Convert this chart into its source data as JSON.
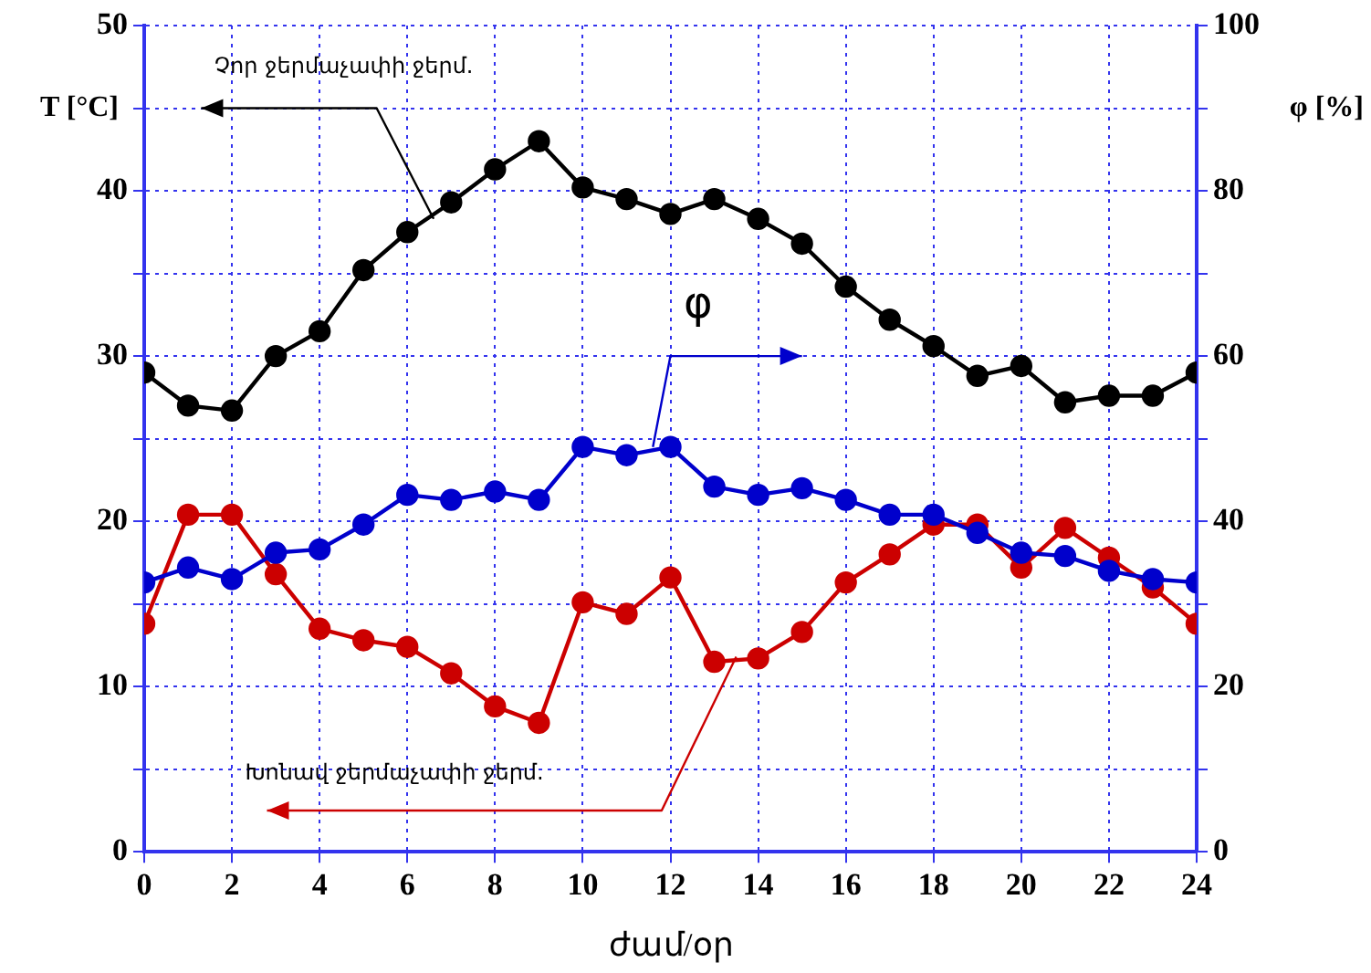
{
  "chart_data": {
    "type": "line",
    "xlabel": "ժամ/օր",
    "ylabel": "T [°C]",
    "y2label": "φ [%]",
    "x": [
      0,
      1,
      2,
      3,
      4,
      5,
      6,
      7,
      8,
      9,
      10,
      11,
      12,
      13,
      14,
      15,
      16,
      17,
      18,
      19,
      20,
      21,
      22,
      23,
      24
    ],
    "xlim": [
      0,
      24
    ],
    "xticks": [
      0,
      2,
      4,
      6,
      8,
      10,
      12,
      14,
      16,
      18,
      20,
      22,
      24
    ],
    "ylim": [
      0,
      50
    ],
    "yticks": [
      0,
      {
        "value": 5,
        "label": null
      },
      10,
      {
        "value": 15,
        "label": null
      },
      20,
      {
        "value": 25,
        "label": null
      },
      30,
      {
        "value": 35,
        "label": null
      },
      40,
      {
        "value": 45,
        "label": null
      },
      50
    ],
    "y2lim": [
      0,
      100
    ],
    "y2ticks": [
      0,
      {
        "value": 10,
        "label": null
      },
      20,
      {
        "value": 30,
        "label": null
      },
      40,
      {
        "value": 50,
        "label": null
      },
      60,
      {
        "value": 70,
        "label": null
      },
      80,
      {
        "value": 90,
        "label": null
      },
      100
    ],
    "grid": true,
    "marker": "circle",
    "line_style": "solid",
    "legend": false,
    "series": [
      {
        "color": "#000000",
        "values": [
          29,
          27,
          26.7,
          30,
          31.5,
          35.2,
          37.5,
          39.3,
          41.3,
          43,
          40.2,
          39.5,
          38.6,
          39.5,
          38.3,
          36.8,
          34.2,
          32.2,
          30.6,
          28.8,
          29.4,
          27.2,
          27.6,
          27.6,
          29
        ]
      },
      {
        "color": "#0000cc",
        "axis": "y2",
        "values": [
          32.6,
          34.4,
          33,
          36.2,
          36.6,
          39.6,
          43.2,
          42.6,
          43.6,
          42.6,
          49,
          48,
          49,
          44.2,
          43.2,
          44,
          42.6,
          40.8,
          40.8,
          38.6,
          36.2,
          35.8,
          34,
          33,
          32.6
        ]
      },
      {
        "color": "#cc0000",
        "values": [
          13.8,
          20.4,
          20.4,
          16.8,
          13.5,
          12.8,
          12.4,
          10.8,
          8.8,
          7.8,
          15.1,
          14.4,
          16.6,
          11.5,
          11.7,
          13.3,
          16.3,
          18,
          19.8,
          19.8,
          17.2,
          19.6,
          17.8,
          16,
          13.8
        ]
      }
    ],
    "annotations": [
      "Չոր ջերմաչափի ջերմ.",
      "φ",
      "Խոնավ ջերմաչափի ջերմ."
    ]
  }
}
